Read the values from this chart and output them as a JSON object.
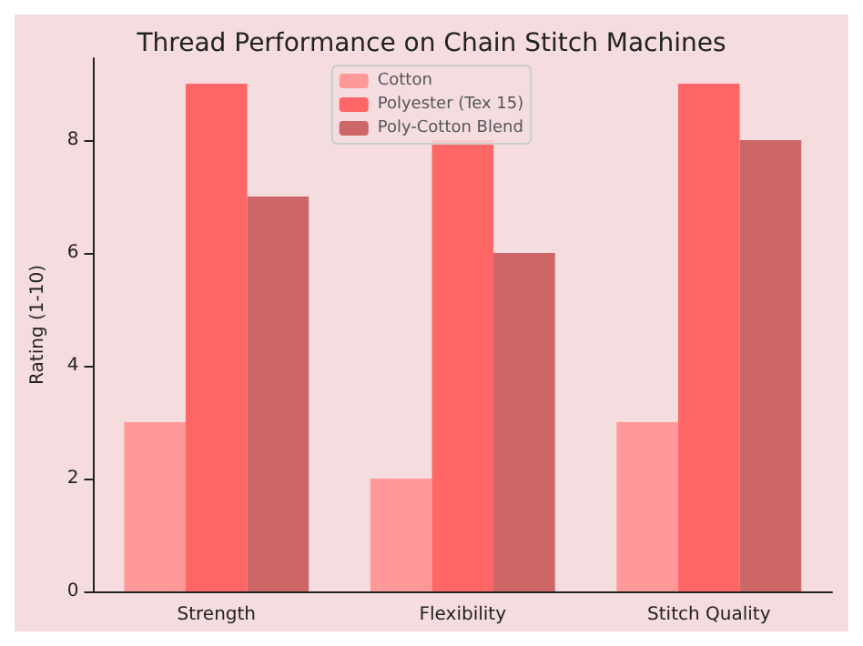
{
  "chart_data": {
    "type": "bar",
    "title": "Thread Performance on Chain Stitch Machines",
    "ylabel": "Rating (1-10)",
    "categories": [
      "Strength",
      "Flexibility",
      "Stitch Quality"
    ],
    "series": [
      {
        "name": "Cotton",
        "color": "#ff9999",
        "values": [
          3,
          2,
          3
        ]
      },
      {
        "name": "Polyester (Tex 15)",
        "color": "#ff6666",
        "values": [
          9,
          8,
          9
        ]
      },
      {
        "name": "Poly-Cotton Blend",
        "color": "#cd6666",
        "values": [
          7,
          6,
          8
        ]
      }
    ],
    "ylim": [
      0,
      9.45
    ],
    "yticks": [
      0,
      2,
      4,
      6,
      8
    ],
    "legend": "top",
    "grid": false
  }
}
